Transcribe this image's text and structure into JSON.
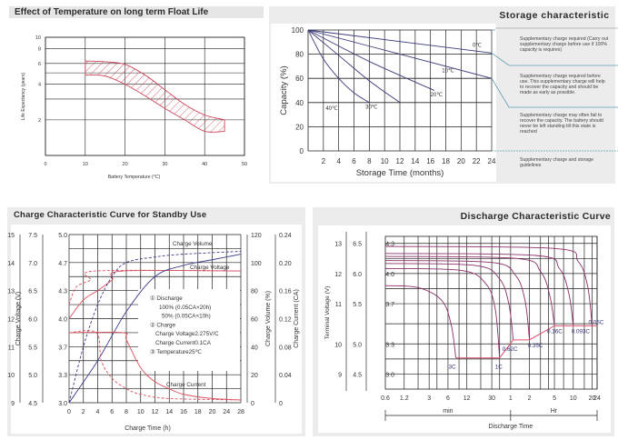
{
  "chart_data": [
    {
      "type": "area",
      "title": "Effect of Temperature on long term Float Life",
      "xlabel": "Battery Temperature (°C)",
      "ylabel": "Life Expectancy (years)",
      "xlim": [
        0,
        50
      ],
      "ylim": [
        1,
        10
      ],
      "yscale": "log",
      "x_ticks": [
        "0",
        "10",
        "20",
        "30",
        "40",
        "50"
      ],
      "y_ticks": [
        "10",
        "8",
        "6",
        "4",
        "2"
      ],
      "series": [
        {
          "name": "upper bound",
          "x": [
            10,
            15,
            20,
            25,
            30,
            35,
            40,
            45
          ],
          "y": [
            6.3,
            6.2,
            5.9,
            4.8,
            3.6,
            2.7,
            2.2,
            2.0
          ]
        },
        {
          "name": "lower bound",
          "x": [
            10,
            15,
            20,
            25,
            30,
            35,
            40,
            45
          ],
          "y": [
            4.8,
            4.7,
            4.0,
            3.2,
            2.5,
            2.0,
            1.6,
            1.6
          ]
        }
      ],
      "grid": true
    },
    {
      "type": "line",
      "title": "Storage characteristic",
      "xlabel": "Storage Time (months)",
      "ylabel": "Capacity (%)",
      "xlim": [
        0,
        24
      ],
      "ylim": [
        0,
        100
      ],
      "x_ticks": [
        "2",
        "4",
        "6",
        "8",
        "10",
        "12",
        "14",
        "16",
        "18",
        "20",
        "22",
        "24"
      ],
      "y_ticks": [
        "100",
        "80",
        "60",
        "40",
        "20",
        "0"
      ],
      "series": [
        {
          "name": "0℃",
          "x": [
            0,
            24
          ],
          "y": [
            100,
            81
          ]
        },
        {
          "name": "10℃",
          "x": [
            0,
            12,
            24
          ],
          "y": [
            100,
            80,
            60
          ]
        },
        {
          "name": "20℃",
          "x": [
            0,
            8,
            16.5
          ],
          "y": [
            100,
            74,
            50
          ]
        },
        {
          "name": "30℃",
          "x": [
            0,
            4,
            8,
            12
          ],
          "y": [
            100,
            79,
            58,
            40
          ]
        },
        {
          "name": "40℃",
          "x": [
            0,
            2,
            4,
            6,
            8
          ],
          "y": [
            100,
            76,
            60,
            48,
            40
          ]
        }
      ],
      "annotations": [
        "Supplementary charge required (Carry out supplementary charge before use if 100% capacity is requires)",
        "Supplementary charge required before use. This supplementary charge will help to recover the capacity and should be made as early as possible.",
        "Supplementary charge may often fail to recover the capacity. The battery should never be left standing till this state is reached",
        "Supplementary charge and storage guidelines"
      ],
      "grid": true
    },
    {
      "type": "line",
      "title": "Charge Characteristic Curve for Standby Use",
      "xlabel": "Charge Time (h)",
      "ylabel": "Charge Voltage (V)",
      "y2label": "Charge Volume (%)",
      "y3label": "Charge Current (CA)",
      "xlim": [
        0,
        28
      ],
      "x_ticks": [
        "0",
        "2",
        "4",
        "6",
        "8",
        "10",
        "12",
        "14",
        "16",
        "18",
        "20",
        "24",
        "28"
      ],
      "y_ticks_12v": [
        "15",
        "14",
        "13",
        "12",
        "11",
        "10",
        "9"
      ],
      "y_ticks_6v": [
        "7.5",
        "7.0",
        "6.5",
        "6.0",
        "5.5",
        "5.0",
        "4.5"
      ],
      "y_ticks_cell": [
        "5.0",
        "4.7",
        "4.3",
        "4.0",
        "3.7",
        "3.3",
        "3.0"
      ],
      "y_ticks_volume": [
        "120",
        "100",
        "80",
        "60",
        "40",
        "20",
        "0"
      ],
      "y_ticks_current": [
        "0.24",
        "0.20",
        "0.16",
        "0.12",
        "0.08",
        "0.04",
        "0"
      ],
      "series": [
        {
          "name": "Charge Voltage (100%)",
          "style": "solid",
          "color": "#d9505f",
          "x": [
            0,
            2,
            4,
            6,
            7.5,
            28
          ],
          "y": [
            4.0,
            4.2,
            4.3,
            4.45,
            4.58,
            4.58
          ]
        },
        {
          "name": "Charge Voltage (50%)",
          "style": "dashed",
          "color": "#d9505f",
          "x": [
            0,
            1,
            3,
            3.8,
            28
          ],
          "y": [
            4.15,
            4.35,
            4.45,
            4.58,
            4.58
          ]
        },
        {
          "name": "Charge Volume (100%)",
          "style": "solid",
          "color": "#3d3d8a",
          "x": [
            0,
            4,
            8,
            12,
            16,
            20,
            28
          ],
          "y": [
            0,
            30,
            65,
            90,
            98,
            102,
            106
          ]
        },
        {
          "name": "Charge Volume (50%)",
          "style": "dashed",
          "color": "#3d3d8a",
          "x": [
            0,
            2,
            4,
            6,
            8,
            12,
            16,
            28
          ],
          "y": [
            0,
            40,
            70,
            90,
            100,
            104,
            106,
            108
          ]
        },
        {
          "name": "Charge Current (100%)",
          "style": "solid",
          "color": "#d9505f",
          "x": [
            0,
            7.5,
            8,
            10,
            12,
            14,
            16,
            20,
            28
          ],
          "y": [
            0.1,
            0.1,
            0.09,
            0.05,
            0.03,
            0.02,
            0.012,
            0.006,
            0.004
          ]
        },
        {
          "name": "Charge Current (50%)",
          "style": "dashed",
          "color": "#d9505f",
          "x": [
            0,
            3.8,
            4.5,
            6,
            8,
            10,
            14,
            28
          ],
          "y": [
            0.1,
            0.1,
            0.06,
            0.035,
            0.02,
            0.012,
            0.006,
            0.004
          ]
        }
      ],
      "curve_labels": [
        "Charge Volume",
        "Charge Voltage",
        "Charge Current"
      ],
      "legend_lines": [
        "① Discharge",
        "100% (0.05CA×20h)",
        "50% (0.05CA×10h)",
        "② Charge",
        "Charge Voltage2.275V/C",
        "Charge Current0.1CA",
        "③ Temperature25℃"
      ],
      "grid": true
    },
    {
      "type": "line",
      "title": "Discharge Characteristic Curve",
      "xlabel": "Discharge Time",
      "ylabel": "Terminal Voltage (V)",
      "x_ticks": [
        "0.6",
        "1.2",
        "3",
        "6",
        "12",
        "30",
        "1",
        "2",
        "5",
        "10",
        "20",
        "24"
      ],
      "x_units": [
        "min",
        "Hr"
      ],
      "y_ticks_12v": [
        "13",
        "12",
        "11",
        "10",
        "9"
      ],
      "y_ticks_6v": [
        "6.5",
        "6.0",
        "5.5",
        "5.0",
        "4.5"
      ],
      "y_ticks_cell": [
        "4.3",
        "4.0",
        "3.7",
        "3.3",
        "3.0"
      ],
      "series": [
        {
          "name": "3C",
          "end_minutes": 8,
          "start_v": 3.88,
          "end_v": 3.16
        },
        {
          "name": "1C",
          "end_minutes": 40,
          "start_v": 4.05,
          "end_v": 3.16
        },
        {
          "name": "0.62C",
          "end_minutes": 66,
          "start_v": 4.1,
          "end_v": 3.34
        },
        {
          "name": "0.35C",
          "end_minutes": 120,
          "start_v": 4.13,
          "end_v": 3.34
        },
        {
          "name": "0.16C",
          "end_minutes": 300,
          "start_v": 4.17,
          "end_v": 3.48
        },
        {
          "name": "0.093C",
          "end_minutes": 600,
          "start_v": 4.2,
          "end_v": 3.48
        },
        {
          "name": "0.05C",
          "end_minutes": 1200,
          "start_v": 4.27,
          "end_v": 3.48
        }
      ],
      "grid": true
    }
  ],
  "titles": {
    "float_life": "Effect of Temperature on long term Float Life",
    "storage": "Storage characteristic",
    "charge": "Charge Characteristic Curve for Standby Use",
    "discharge": "Discharge Characteristic Curve"
  }
}
